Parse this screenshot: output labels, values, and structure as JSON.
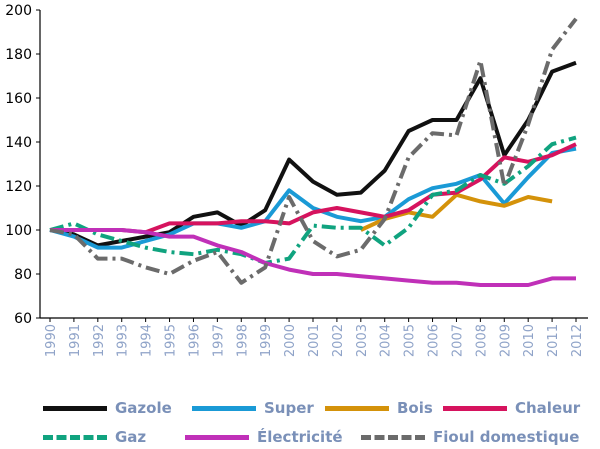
{
  "chart_data": {
    "type": "line",
    "title": "",
    "xlabel": "",
    "ylabel": "",
    "ylim": [
      60,
      200
    ],
    "yticks": [
      "60",
      "80",
      "100",
      "120",
      "140",
      "160",
      "180",
      "200"
    ],
    "categories": [
      "1990",
      "1991",
      "1992",
      "1993",
      "1994",
      "1995",
      "1996",
      "1997",
      "1998",
      "1999",
      "2000",
      "2001",
      "2002",
      "2003",
      "2004",
      "2005",
      "2006",
      "2007",
      "2008",
      "2009",
      "2010",
      "2011",
      "2012"
    ],
    "grid": false,
    "legend_position": "bottom",
    "series": [
      {
        "name": "Gazole",
        "color": "#111111",
        "dash": "solid",
        "values": [
          100,
          98,
          93,
          95,
          97,
          99,
          106,
          108,
          102,
          109,
          132,
          122,
          116,
          117,
          127,
          145,
          150,
          150,
          169,
          134,
          150,
          172,
          176
        ]
      },
      {
        "name": "Super",
        "color": "#1a9ad6",
        "dash": "solid",
        "values": [
          100,
          97,
          92,
          92,
          95,
          98,
          103,
          103,
          101,
          104,
          118,
          110,
          106,
          104,
          106,
          114,
          119,
          121,
          125,
          112,
          124,
          135,
          137
        ]
      },
      {
        "name": "Bois",
        "color": "#d4920a",
        "dash": "solid",
        "values": [
          null,
          null,
          null,
          null,
          null,
          null,
          null,
          null,
          null,
          null,
          null,
          null,
          null,
          100,
          105,
          108,
          106,
          116,
          113,
          111,
          115,
          113,
          null
        ]
      },
      {
        "name": "Chaleur",
        "color": "#d6135e",
        "dash": "solid",
        "values": [
          100,
          100,
          100,
          100,
          99,
          103,
          103,
          103,
          104,
          104,
          103,
          108,
          110,
          108,
          106,
          109,
          116,
          117,
          123,
          133,
          131,
          134,
          139
        ]
      },
      {
        "name": "Gaz",
        "color": "#10a37f",
        "dash": "dashdot",
        "values": [
          100,
          103,
          98,
          95,
          92,
          90,
          89,
          91,
          89,
          85,
          87,
          102,
          101,
          101,
          93,
          101,
          116,
          118,
          125,
          121,
          129,
          139,
          142
        ]
      },
      {
        "name": "Électricité",
        "color": "#c030b8",
        "dash": "solid",
        "values": [
          100,
          100,
          100,
          100,
          99,
          97,
          97,
          93,
          90,
          85,
          82,
          80,
          80,
          79,
          78,
          77,
          76,
          76,
          75,
          75,
          75,
          78,
          78
        ]
      },
      {
        "name": "Fioul domestique",
        "color": "#6b6b6b",
        "dash": "dashdot",
        "values": [
          100,
          98,
          87,
          87,
          83,
          80,
          86,
          90,
          76,
          83,
          115,
          95,
          88,
          91,
          105,
          133,
          144,
          143,
          177,
          120,
          148,
          182,
          196
        ]
      }
    ]
  }
}
